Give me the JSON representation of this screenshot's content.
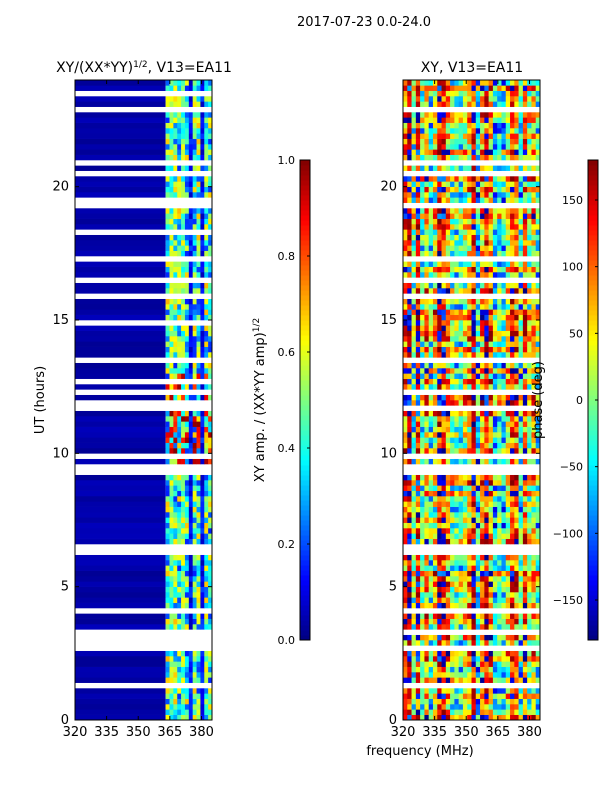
{
  "suptitle": "2017-07-23 0.0-24.0",
  "xlabel_shared": "frequency (MHz)",
  "colors": {
    "jet": [
      "#00007f",
      "#0000ff",
      "#007fff",
      "#00ffff",
      "#7fff7f",
      "#ffff00",
      "#ff7f00",
      "#ff0000",
      "#7f0000"
    ],
    "gap": "#ffffff",
    "background": "#00008b"
  },
  "chart_data": [
    {
      "type": "heatmap",
      "title": "XY/(XX*YY)^{1/2}, V13=EA11",
      "title_base": "XY/(XX*YY)",
      "title_exp": "1/2",
      "title_tail": ", V13=EA11",
      "xlabel": "",
      "ylabel": "UT (hours)",
      "xlim": [
        320,
        385
      ],
      "ylim": [
        0,
        24
      ],
      "xticks": [
        320,
        335,
        350,
        365,
        380
      ],
      "yticks": [
        0,
        5,
        10,
        15,
        20
      ],
      "value_range": [
        0,
        1
      ],
      "active_band_mhz": [
        363,
        385
      ],
      "colorbar": {
        "label": "XY amp. / (XX*YY amp)^{1/2}",
        "label_base": "XY amp. / (XX*YY amp)",
        "label_exp": "1/2",
        "ticks": [
          "0.0",
          "0.2",
          "0.4",
          "0.6",
          "0.8",
          "1.0"
        ],
        "range": [
          0,
          1
        ]
      }
    },
    {
      "type": "heatmap",
      "title": "XY, V13=EA11",
      "xlabel": "frequency (MHz)",
      "ylabel": "",
      "xlim": [
        320,
        385
      ],
      "ylim": [
        0,
        24
      ],
      "xticks": [
        320,
        335,
        350,
        365,
        380
      ],
      "yticks": [
        0,
        5,
        10,
        15,
        20
      ],
      "value_range": [
        -180,
        180
      ],
      "colorbar": {
        "label": "phase (deg)",
        "ticks": [
          "-150",
          "-100",
          "-50",
          "0",
          "50",
          "100",
          "150"
        ],
        "range": [
          -180,
          180
        ]
      }
    }
  ]
}
